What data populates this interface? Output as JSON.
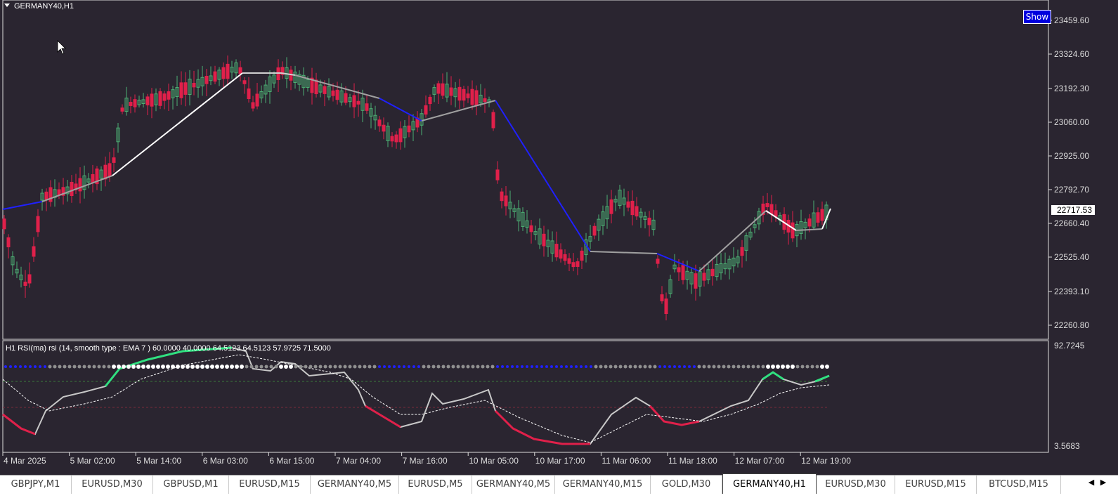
{
  "symbol_title": "GERMANY40,H1",
  "show_button": "Show",
  "current_price": "22717.53",
  "price_axis": [
    "23459.60",
    "23324.60",
    "23192.30",
    "23060.00",
    "22925.00",
    "22792.70",
    "22660.40",
    "22525.40",
    "22393.10",
    "22260.80"
  ],
  "rsi_axis": [
    "92.7245",
    "3.5683"
  ],
  "indicator_label": "H1 RSI(ma) rsi (14, smooth type : EMA  7 ) 60.0000 40.0000 64.5123 64.5123 57.9725 71.5000",
  "time_axis": [
    "4 Mar 2025",
    "5 Mar 02:00",
    "5 Mar 14:00",
    "6 Mar 03:00",
    "6 Mar 15:00",
    "7 Mar 04:00",
    "7 Mar 16:00",
    "10 Mar 05:00",
    "10 Mar 17:00",
    "11 Mar 06:00",
    "11 Mar 18:00",
    "12 Mar 07:00",
    "12 Mar 19:00"
  ],
  "tabs": [
    "GBPJPY,M1",
    "EURUSD,M30",
    "GBPUSD,M1",
    "EURUSD,M15",
    "GERMANY40,M5",
    "EURUSD,M5",
    "GERMANY40,M5",
    "GERMANY40,M15",
    "GOLD,M30",
    "GERMANY40,H1",
    "EURUSD,M30",
    "EURUSD,M15",
    "BTCUSD,M15"
  ],
  "active_tab": 9,
  "colors": {
    "background": "#2a2530",
    "bull": "#4caf73",
    "bear": "#e0204a",
    "axis_text": "#dddddd",
    "grid_line": "#ffffff"
  }
}
